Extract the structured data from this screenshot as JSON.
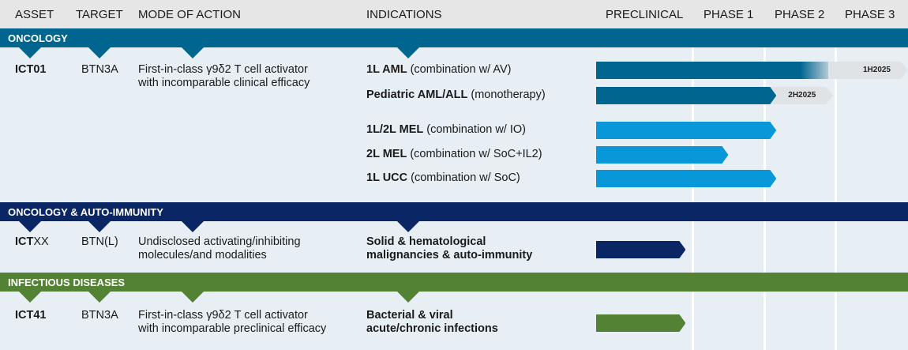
{
  "header": {
    "asset": "ASSET",
    "target": "TARGET",
    "moa": "MODE OF ACTION",
    "indications": "INDICATIONS",
    "phases": [
      "PRECLINICAL",
      "PHASE 1",
      "PHASE 2",
      "PHASE 3"
    ]
  },
  "colors": {
    "oncology": "#006690",
    "auto_immunity": "#0b2664",
    "infectious": "#548235",
    "solid_tumor_bar": "#0897d8",
    "header_bg": "#e6e6e6",
    "body_bg": "#e7eff5"
  },
  "sections": [
    {
      "label": "ONCOLOGY",
      "asset": "ICT01",
      "asset_suffix": "",
      "target": "BTN3A",
      "moa": [
        "First-in-class γ9δ2 T cell activator",
        "with incomparable clinical efficacy"
      ],
      "indications": [
        {
          "bold": "1L AML",
          "rest": " (combination w/ AV)",
          "progress": 2.9,
          "expected_to": 4.0,
          "milestone": "1H2025"
        },
        {
          "bold": "Pediatric AML/ALL",
          "rest": " (monotherapy)",
          "progress": 2.17,
          "expected_to": 2.97,
          "milestone": "2H2025"
        },
        {
          "bold": "1L/2L MEL",
          "rest": " (combination w/ IO)",
          "progress": 2.17
        },
        {
          "bold": "2L MEL",
          "rest": " (combination w/ SoC+IL2)",
          "progress": 1.5
        },
        {
          "bold": "1L UCC",
          "rest": " (combination w/ SoC)",
          "progress": 2.17
        }
      ]
    },
    {
      "label": "ONCOLOGY & AUTO-IMMUNITY",
      "asset": "ICT",
      "asset_suffix": "XX",
      "target": "BTN(L)",
      "moa": [
        "Undisclosed activating/inhibiting",
        "molecules/and modalities"
      ],
      "indications": [
        {
          "bold": "Solid & hematological",
          "bold2": "malignancies & auto-immunity",
          "progress": 0.93
        }
      ]
    },
    {
      "label": "INFECTIOUS DISEASES",
      "asset": "ICT41",
      "asset_suffix": "",
      "target": "BTN3A",
      "moa": [
        "First-in-class γ9δ2 T cell activator",
        "with incomparable preclinical efficacy"
      ],
      "indications": [
        {
          "bold": "Bacterial & viral",
          "bold2": "acute/chronic infections",
          "progress": 0.93
        }
      ]
    }
  ]
}
